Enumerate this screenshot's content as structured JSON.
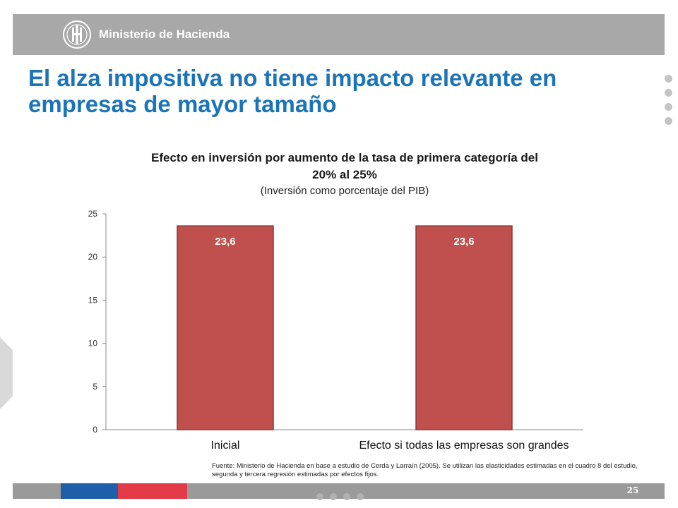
{
  "header": {
    "ministry_name": "Ministerio de Hacienda",
    "logo_icon": "ministerio-hacienda-emblem"
  },
  "slide": {
    "title": "El alza impositiva no tiene impacto relevante en empresas de mayor tamaño"
  },
  "chart_data": {
    "type": "bar",
    "title": "Efecto en inversión por aumento de la tasa de primera categoría del 20% al 25%",
    "subtitle": "(Inversión como porcentaje del PIB)",
    "categories": [
      "Inicial",
      "Efecto si todas las empresas son grandes"
    ],
    "values": [
      23.6,
      23.6
    ],
    "value_labels": [
      "23,6",
      "23,6"
    ],
    "ylim": [
      0,
      25
    ],
    "yticks": [
      0,
      5,
      10,
      15,
      20,
      25
    ],
    "xlabel": "",
    "ylabel": "",
    "grid": false,
    "bar_color": "#c0504d",
    "bar_edge_color": "#8c3836"
  },
  "source_note": "Fuente: Ministerio de Hacienda en base  a estudio de Cerda y Larraín (2005). Se utilizan las elasticidades estimadas en el cuadro 8 del estudio, segunda y tercera regresión estimadas por efectos fijos.",
  "footer": {
    "page_number": "25"
  },
  "colors": {
    "title_blue": "#1c74b8",
    "header_gray": "#a8a8a8",
    "footer_gray": "#9a9a9a",
    "flag_blue": "#1d5fa8",
    "flag_red": "#e23a46"
  }
}
